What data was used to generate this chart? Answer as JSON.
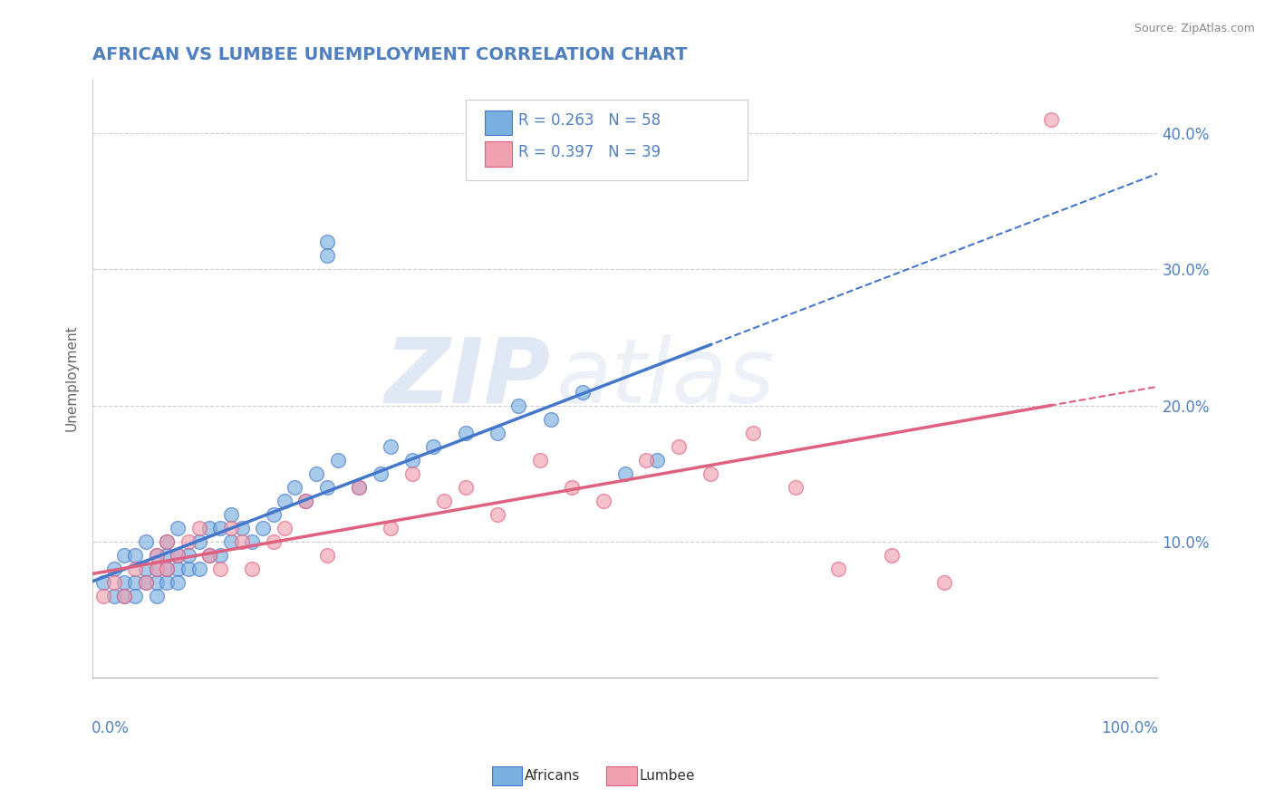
{
  "title": "AFRICAN VS LUMBEE UNEMPLOYMENT CORRELATION CHART",
  "source": "Source: ZipAtlas.com",
  "ylabel": "Unemployment",
  "xlim": [
    0,
    1.0
  ],
  "ylim": [
    0,
    0.44
  ],
  "ytick_right_values": [
    0.1,
    0.2,
    0.3,
    0.4
  ],
  "grid_color": "#cccccc",
  "background_color": "#ffffff",
  "africans_color": "#7ab0e0",
  "lumbee_color": "#f0a0b0",
  "africans_line_color": "#4477cc",
  "lumbee_line_color": "#e06080",
  "R_africans": 0.263,
  "N_africans": 58,
  "R_lumbee": 0.397,
  "N_lumbee": 39,
  "africans_x": [
    0.01,
    0.02,
    0.02,
    0.03,
    0.03,
    0.03,
    0.04,
    0.04,
    0.04,
    0.05,
    0.05,
    0.05,
    0.06,
    0.06,
    0.06,
    0.06,
    0.07,
    0.07,
    0.07,
    0.07,
    0.08,
    0.08,
    0.08,
    0.08,
    0.09,
    0.09,
    0.1,
    0.1,
    0.11,
    0.11,
    0.12,
    0.12,
    0.13,
    0.13,
    0.14,
    0.15,
    0.16,
    0.17,
    0.18,
    0.19,
    0.2,
    0.21,
    0.22,
    0.22,
    0.23,
    0.25,
    0.27,
    0.28,
    0.3,
    0.32,
    0.35,
    0.38,
    0.4,
    0.43,
    0.46,
    0.5,
    0.53,
    0.22
  ],
  "africans_y": [
    0.07,
    0.06,
    0.08,
    0.07,
    0.09,
    0.06,
    0.07,
    0.09,
    0.06,
    0.07,
    0.08,
    0.1,
    0.06,
    0.07,
    0.09,
    0.08,
    0.07,
    0.08,
    0.1,
    0.09,
    0.08,
    0.09,
    0.11,
    0.07,
    0.08,
    0.09,
    0.08,
    0.1,
    0.09,
    0.11,
    0.09,
    0.11,
    0.1,
    0.12,
    0.11,
    0.1,
    0.11,
    0.12,
    0.13,
    0.14,
    0.13,
    0.15,
    0.14,
    0.32,
    0.16,
    0.14,
    0.15,
    0.17,
    0.16,
    0.17,
    0.18,
    0.18,
    0.2,
    0.19,
    0.21,
    0.15,
    0.16,
    0.31
  ],
  "lumbee_x": [
    0.01,
    0.02,
    0.03,
    0.04,
    0.05,
    0.06,
    0.06,
    0.07,
    0.07,
    0.08,
    0.09,
    0.1,
    0.11,
    0.12,
    0.13,
    0.14,
    0.15,
    0.17,
    0.18,
    0.2,
    0.22,
    0.25,
    0.28,
    0.3,
    0.33,
    0.35,
    0.38,
    0.42,
    0.45,
    0.48,
    0.52,
    0.55,
    0.58,
    0.62,
    0.66,
    0.7,
    0.75,
    0.8,
    0.9
  ],
  "lumbee_y": [
    0.06,
    0.07,
    0.06,
    0.08,
    0.07,
    0.09,
    0.08,
    0.08,
    0.1,
    0.09,
    0.1,
    0.11,
    0.09,
    0.08,
    0.11,
    0.1,
    0.08,
    0.1,
    0.11,
    0.13,
    0.09,
    0.14,
    0.11,
    0.15,
    0.13,
    0.14,
    0.12,
    0.16,
    0.14,
    0.13,
    0.16,
    0.17,
    0.15,
    0.18,
    0.14,
    0.08,
    0.09,
    0.07,
    0.41
  ],
  "watermark_zip": "ZIP",
  "watermark_atlas": "atlas",
  "title_color": "#5080c0",
  "source_color": "#888888",
  "axis_label_color": "#5080c0",
  "legend_text_color": "#5080c0"
}
